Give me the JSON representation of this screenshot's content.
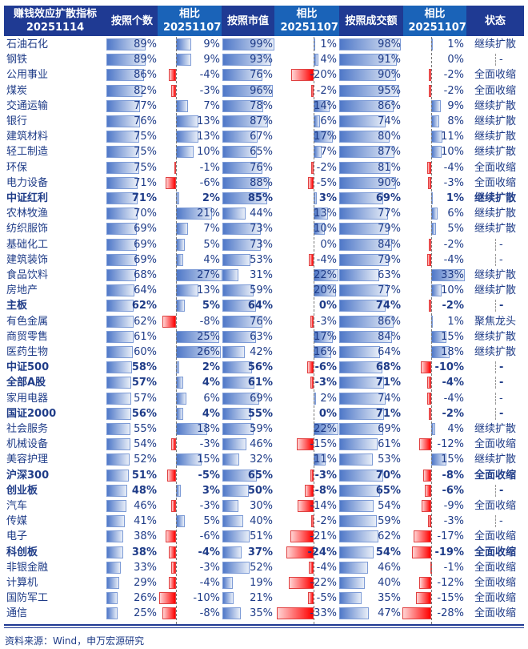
{
  "headers": {
    "title": [
      "赚钱效应扩散指标",
      "20251114"
    ],
    "count": "按照个数",
    "cmp1": [
      "相比",
      "20251107"
    ],
    "mcap": "按照市值",
    "cmp2": [
      "相比",
      "20251107"
    ],
    "turnover": "按照成交额",
    "cmp3": [
      "相比",
      "20251107"
    ],
    "status": "状态"
  },
  "source": "资料来源：Wind，申万宏源研究",
  "colors": {
    "header_dark": "#1f3a93",
    "header_light": "#1a63b8",
    "positive_bar": "#4f78c8",
    "negative_bar": "#ff0000",
    "text": "#1f3c88"
  },
  "chart_data": {
    "type": "table",
    "columns": [
      "赚钱效应扩散指标 20251114",
      "按照个数",
      "相比20251107",
      "按照市值",
      "相比20251107",
      "按照成交额",
      "相比20251107",
      "状态"
    ],
    "unit": "%",
    "rows": [
      {
        "name": "石油石化",
        "count": 89,
        "count_chg": 9,
        "mcap": 99,
        "mcap_chg": 1,
        "turnover": 98,
        "turnover_chg": 1,
        "status": "继续扩散",
        "bold": false
      },
      {
        "name": "钢铁",
        "count": 89,
        "count_chg": 9,
        "mcap": 93,
        "mcap_chg": 4,
        "turnover": 91,
        "turnover_chg": 0,
        "status": "-",
        "bold": false
      },
      {
        "name": "公用事业",
        "count": 86,
        "count_chg": -4,
        "mcap": 76,
        "mcap_chg": -20,
        "turnover": 90,
        "turnover_chg": -2,
        "status": "全面收缩",
        "bold": false
      },
      {
        "name": "煤炭",
        "count": 82,
        "count_chg": -3,
        "mcap": 96,
        "mcap_chg": -2,
        "turnover": 95,
        "turnover_chg": -2,
        "status": "全面收缩",
        "bold": false
      },
      {
        "name": "交通运输",
        "count": 77,
        "count_chg": 7,
        "mcap": 78,
        "mcap_chg": 14,
        "turnover": 86,
        "turnover_chg": 9,
        "status": "继续扩散",
        "bold": false
      },
      {
        "name": "银行",
        "count": 76,
        "count_chg": 13,
        "mcap": 87,
        "mcap_chg": 6,
        "turnover": 74,
        "turnover_chg": 8,
        "status": "继续扩散",
        "bold": false
      },
      {
        "name": "建筑材料",
        "count": 75,
        "count_chg": 13,
        "mcap": 67,
        "mcap_chg": 17,
        "turnover": 80,
        "turnover_chg": 11,
        "status": "继续扩散",
        "bold": false
      },
      {
        "name": "轻工制造",
        "count": 75,
        "count_chg": 10,
        "mcap": 65,
        "mcap_chg": 7,
        "turnover": 87,
        "turnover_chg": 10,
        "status": "继续扩散",
        "bold": false
      },
      {
        "name": "环保",
        "count": 75,
        "count_chg": -1,
        "mcap": 76,
        "mcap_chg": -2,
        "turnover": 81,
        "turnover_chg": -4,
        "status": "全面收缩",
        "bold": false
      },
      {
        "name": "电力设备",
        "count": 71,
        "count_chg": -6,
        "mcap": 88,
        "mcap_chg": -5,
        "turnover": 90,
        "turnover_chg": -3,
        "status": "全面收缩",
        "bold": false
      },
      {
        "name": "中证红利",
        "count": 71,
        "count_chg": 2,
        "mcap": 85,
        "mcap_chg": 3,
        "turnover": 69,
        "turnover_chg": 1,
        "status": "继续扩散",
        "bold": true
      },
      {
        "name": "农林牧渔",
        "count": 70,
        "count_chg": 21,
        "mcap": 44,
        "mcap_chg": 13,
        "turnover": 77,
        "turnover_chg": 6,
        "status": "继续扩散",
        "bold": false
      },
      {
        "name": "纺织服饰",
        "count": 69,
        "count_chg": 7,
        "mcap": 73,
        "mcap_chg": 10,
        "turnover": 79,
        "turnover_chg": 5,
        "status": "继续扩散",
        "bold": false
      },
      {
        "name": "基础化工",
        "count": 69,
        "count_chg": 5,
        "mcap": 73,
        "mcap_chg": 0,
        "turnover": 84,
        "turnover_chg": -2,
        "status": "-",
        "bold": false
      },
      {
        "name": "建筑装饰",
        "count": 69,
        "count_chg": 4,
        "mcap": 53,
        "mcap_chg": -4,
        "turnover": 79,
        "turnover_chg": -4,
        "status": "-",
        "bold": false
      },
      {
        "name": "食品饮料",
        "count": 68,
        "count_chg": 27,
        "mcap": 31,
        "mcap_chg": 22,
        "turnover": 63,
        "turnover_chg": 33,
        "status": "继续扩散",
        "bold": false
      },
      {
        "name": "房地产",
        "count": 64,
        "count_chg": 13,
        "mcap": 59,
        "mcap_chg": 20,
        "turnover": 77,
        "turnover_chg": 10,
        "status": "继续扩散",
        "bold": false
      },
      {
        "name": "主板",
        "count": 62,
        "count_chg": 5,
        "mcap": 64,
        "mcap_chg": 0,
        "turnover": 74,
        "turnover_chg": -2,
        "status": "-",
        "bold": true
      },
      {
        "name": "有色金属",
        "count": 62,
        "count_chg": -8,
        "mcap": 76,
        "mcap_chg": -3,
        "turnover": 86,
        "turnover_chg": 1,
        "status": "聚焦龙头",
        "bold": false
      },
      {
        "name": "商贸零售",
        "count": 61,
        "count_chg": 25,
        "mcap": 63,
        "mcap_chg": 17,
        "turnover": 84,
        "turnover_chg": 15,
        "status": "继续扩散",
        "bold": false
      },
      {
        "name": "医药生物",
        "count": 60,
        "count_chg": 26,
        "mcap": 42,
        "mcap_chg": 16,
        "turnover": 64,
        "turnover_chg": 18,
        "status": "继续扩散",
        "bold": false
      },
      {
        "name": "中证500",
        "count": 58,
        "count_chg": 2,
        "mcap": 56,
        "mcap_chg": -6,
        "turnover": 68,
        "turnover_chg": -10,
        "status": "-",
        "bold": true
      },
      {
        "name": "全部A股",
        "count": 57,
        "count_chg": 4,
        "mcap": 61,
        "mcap_chg": -3,
        "turnover": 71,
        "turnover_chg": -4,
        "status": "-",
        "bold": true
      },
      {
        "name": "家用电器",
        "count": 57,
        "count_chg": 6,
        "mcap": 69,
        "mcap_chg": 2,
        "turnover": 74,
        "turnover_chg": -4,
        "status": "-",
        "bold": false
      },
      {
        "name": "国证2000",
        "count": 56,
        "count_chg": 4,
        "mcap": 55,
        "mcap_chg": 0,
        "turnover": 71,
        "turnover_chg": -2,
        "status": "-",
        "bold": true
      },
      {
        "name": "社会服务",
        "count": 55,
        "count_chg": 18,
        "mcap": 59,
        "mcap_chg": 22,
        "turnover": 69,
        "turnover_chg": 4,
        "status": "继续扩散",
        "bold": false
      },
      {
        "name": "机械设备",
        "count": 54,
        "count_chg": -3,
        "mcap": 46,
        "mcap_chg": -15,
        "turnover": 61,
        "turnover_chg": -12,
        "status": "全面收缩",
        "bold": false
      },
      {
        "name": "美容护理",
        "count": 52,
        "count_chg": 15,
        "mcap": 32,
        "mcap_chg": 11,
        "turnover": 53,
        "turnover_chg": 15,
        "status": "继续扩散",
        "bold": false
      },
      {
        "name": "沪深300",
        "count": 51,
        "count_chg": -5,
        "mcap": 65,
        "mcap_chg": -3,
        "turnover": 70,
        "turnover_chg": -8,
        "status": "全面收缩",
        "bold": true
      },
      {
        "name": "创业板",
        "count": 48,
        "count_chg": 3,
        "mcap": 50,
        "mcap_chg": -8,
        "turnover": 65,
        "turnover_chg": -6,
        "status": "-",
        "bold": true
      },
      {
        "name": "汽车",
        "count": 46,
        "count_chg": -3,
        "mcap": 30,
        "mcap_chg": -14,
        "turnover": 54,
        "turnover_chg": -9,
        "status": "全面收缩",
        "bold": false
      },
      {
        "name": "传媒",
        "count": 41,
        "count_chg": 5,
        "mcap": 40,
        "mcap_chg": -2,
        "turnover": 59,
        "turnover_chg": -3,
        "status": "-",
        "bold": false
      },
      {
        "name": "电子",
        "count": 38,
        "count_chg": -6,
        "mcap": 51,
        "mcap_chg": -21,
        "turnover": 62,
        "turnover_chg": -17,
        "status": "全面收缩",
        "bold": false
      },
      {
        "name": "科创板",
        "count": 38,
        "count_chg": -4,
        "mcap": 37,
        "mcap_chg": -24,
        "turnover": 54,
        "turnover_chg": -19,
        "status": "全面收缩",
        "bold": true
      },
      {
        "name": "非银金融",
        "count": 33,
        "count_chg": -3,
        "mcap": 52,
        "mcap_chg": -4,
        "turnover": 46,
        "turnover_chg": -1,
        "status": "全面收缩",
        "bold": false
      },
      {
        "name": "计算机",
        "count": 29,
        "count_chg": -4,
        "mcap": 19,
        "mcap_chg": -22,
        "turnover": 40,
        "turnover_chg": -12,
        "status": "全面收缩",
        "bold": false
      },
      {
        "name": "国防军工",
        "count": 26,
        "count_chg": -10,
        "mcap": 21,
        "mcap_chg": -5,
        "turnover": 35,
        "turnover_chg": -15,
        "status": "全面收缩",
        "bold": false
      },
      {
        "name": "通信",
        "count": 25,
        "count_chg": -8,
        "mcap": 35,
        "mcap_chg": -33,
        "turnover": 47,
        "turnover_chg": -28,
        "status": "全面收缩",
        "bold": false
      }
    ]
  }
}
